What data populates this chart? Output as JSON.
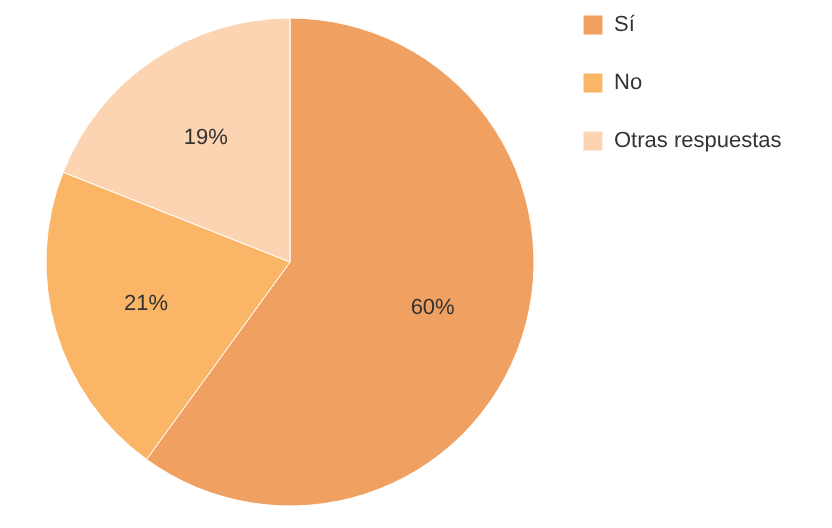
{
  "chart_data": {
    "type": "pie",
    "categories": [
      "Sí",
      "No",
      "Otras respuestas"
    ],
    "values": [
      60,
      21,
      19
    ],
    "colors": [
      "#f0a060",
      "#fbb566",
      "#fcd4b2"
    ],
    "value_labels": [
      "60%",
      "21%",
      "19%"
    ],
    "legend": "right"
  }
}
